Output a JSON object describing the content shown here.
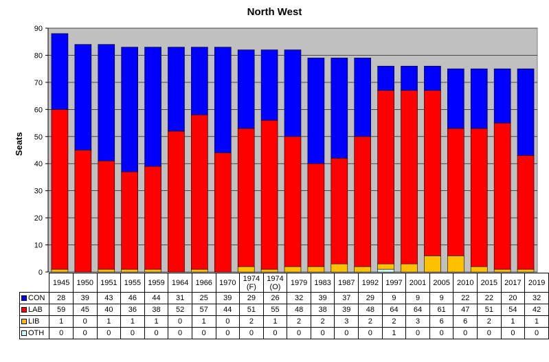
{
  "chart_data": {
    "type": "bar",
    "stacked": true,
    "title": "North West",
    "ylabel": "Seats",
    "xlabel": "",
    "ylim": [
      0,
      90
    ],
    "yticks": [
      0,
      10,
      20,
      30,
      40,
      50,
      60,
      70,
      80,
      90
    ],
    "grid": true,
    "legend": "data-table",
    "categories": [
      "1945",
      "1950",
      "1951",
      "1955",
      "1959",
      "1964",
      "1966",
      "1970",
      "1974\n(F)",
      "1974\n(O)",
      "1979",
      "1983",
      "1987",
      "1992",
      "1997",
      "2001",
      "2005",
      "2010",
      "2015",
      "2017",
      "2019"
    ],
    "series": [
      {
        "name": "CON",
        "color": "#0000ff",
        "values": [
          28,
          39,
          43,
          46,
          44,
          31,
          25,
          39,
          29,
          26,
          32,
          39,
          37,
          29,
          9,
          9,
          9,
          22,
          22,
          20,
          32
        ]
      },
      {
        "name": "LAB",
        "color": "#ff0000",
        "values": [
          59,
          45,
          40,
          36,
          38,
          52,
          57,
          44,
          51,
          55,
          48,
          38,
          39,
          48,
          64,
          64,
          61,
          47,
          51,
          54,
          42
        ]
      },
      {
        "name": "LIB",
        "color": "#ffc000",
        "values": [
          1,
          0,
          1,
          1,
          1,
          0,
          1,
          0,
          2,
          1,
          2,
          2,
          3,
          2,
          2,
          3,
          6,
          6,
          2,
          1,
          1
        ]
      },
      {
        "name": "OTH",
        "color": "#ccffff",
        "values": [
          0,
          0,
          0,
          0,
          0,
          0,
          0,
          0,
          0,
          0,
          0,
          0,
          0,
          0,
          1,
          0,
          0,
          0,
          0,
          0,
          0
        ]
      }
    ]
  },
  "colors": {
    "plot_background": "#c0c0c0"
  }
}
